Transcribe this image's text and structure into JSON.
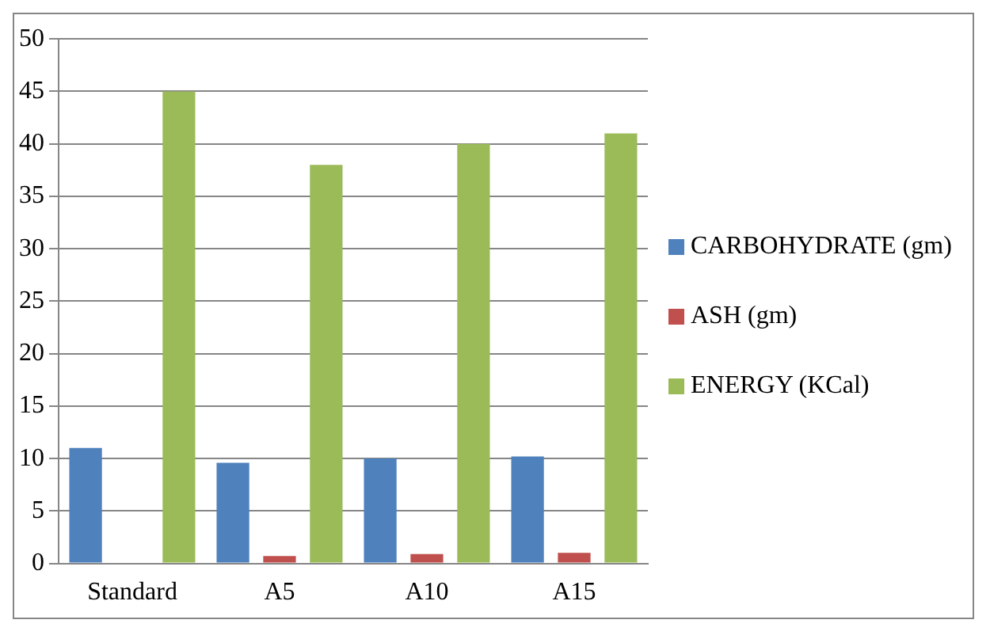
{
  "chart_data": {
    "type": "bar",
    "categories": [
      "Standard",
      "A5",
      "A10",
      "A15"
    ],
    "series": [
      {
        "name": "CARBOHYDRATE (gm)",
        "color": "#4f81bd",
        "values": [
          11,
          9.6,
          10,
          10.2
        ]
      },
      {
        "name": "ASH (gm)",
        "color": "#c0504d",
        "values": [
          0,
          0.7,
          0.9,
          1.0
        ]
      },
      {
        "name": "ENERGY (KCal)",
        "color": "#9bbb59",
        "values": [
          45,
          38,
          40,
          41
        ]
      }
    ],
    "ylim": [
      0,
      50
    ],
    "yticks": [
      0,
      5,
      10,
      15,
      20,
      25,
      30,
      35,
      40,
      45,
      50
    ],
    "grid": "y",
    "legend": "right"
  }
}
